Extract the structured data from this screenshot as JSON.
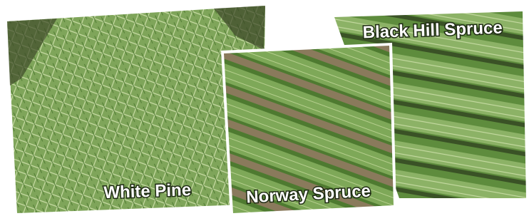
{
  "photos": [
    {
      "label": "Black Hill Spruce"
    },
    {
      "label": "White Pine"
    },
    {
      "label": "Norway Spruce"
    }
  ]
}
